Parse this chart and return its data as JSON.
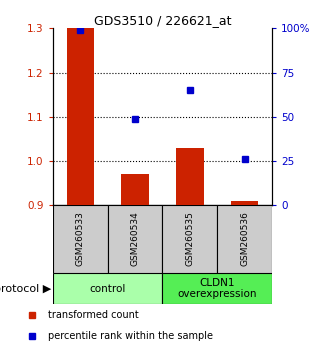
{
  "title": "GDS3510 / 226621_at",
  "samples": [
    "GSM260533",
    "GSM260534",
    "GSM260535",
    "GSM260536"
  ],
  "transformed_count": [
    1.3,
    0.97,
    1.03,
    0.91
  ],
  "percentile_rank": [
    99,
    49,
    65,
    26
  ],
  "bar_baseline": 0.9,
  "ylim_left": [
    0.9,
    1.3
  ],
  "ylim_right": [
    0,
    100
  ],
  "yticks_left": [
    0.9,
    1.0,
    1.1,
    1.2,
    1.3
  ],
  "yticks_right": [
    0,
    25,
    50,
    75,
    100
  ],
  "ytick_labels_right": [
    "0",
    "25",
    "50",
    "75",
    "100%"
  ],
  "bar_color": "#CC2200",
  "dot_color": "#0000CC",
  "group_labels": [
    "control",
    "CLDN1\noverexpression"
  ],
  "group_ranges": [
    [
      0,
      1
    ],
    [
      2,
      3
    ]
  ],
  "group_colors_light": [
    "#BBFFBB",
    "#BBFFBB"
  ],
  "group_colors_dark": [
    "#44DD44",
    "#44DD44"
  ],
  "sample_box_color": "#CCCCCC",
  "legend_bar_label": "transformed count",
  "legend_dot_label": "percentile rank within the sample",
  "protocol_label": "protocol"
}
